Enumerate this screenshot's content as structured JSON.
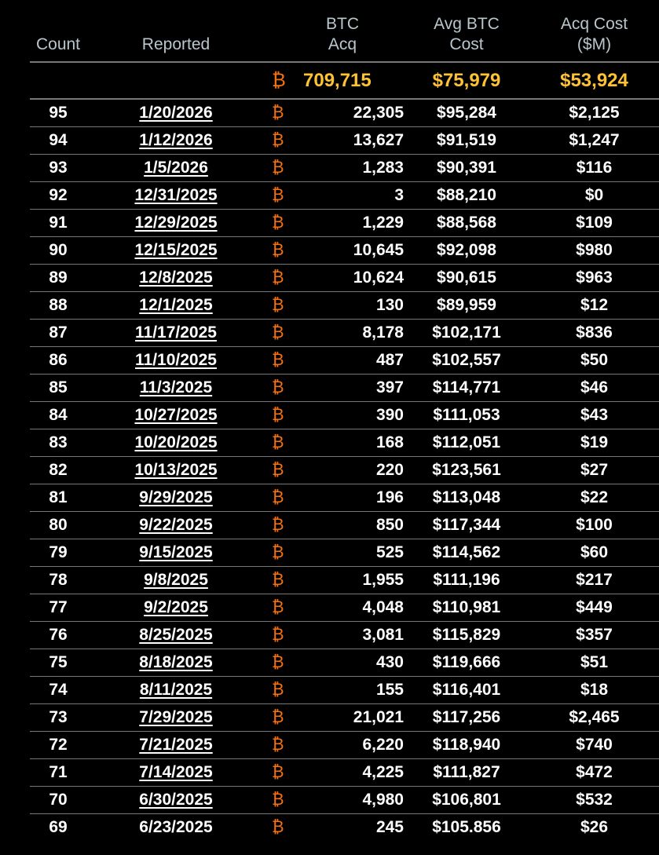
{
  "headers": {
    "count": "Count",
    "reported": "Reported",
    "btc_acq": "BTC Acq",
    "avg_cost": "Avg BTC Cost",
    "acq_cost": "Acq Cost ($M)"
  },
  "totals": {
    "btc_symbol": "₿",
    "btc_acq": "709,715",
    "avg_cost": "$75,979",
    "acq_cost": "$53,924"
  },
  "colors": {
    "btc_symbol": "#f7720f",
    "totals": "#fdc236",
    "header": "#b9c6cc"
  },
  "rows": [
    {
      "count": "95",
      "reported": "1/20/2026",
      "btc": "22,305",
      "avg": "$95,284",
      "cost": "$2,125"
    },
    {
      "count": "94",
      "reported": "1/12/2026",
      "btc": "13,627",
      "avg": "$91,519",
      "cost": "$1,247"
    },
    {
      "count": "93",
      "reported": "1/5/2026",
      "btc": "1,283",
      "avg": "$90,391",
      "cost": "$116"
    },
    {
      "count": "92",
      "reported": "12/31/2025",
      "btc": "3",
      "avg": "$88,210",
      "cost": "$0"
    },
    {
      "count": "91",
      "reported": "12/29/2025",
      "btc": "1,229",
      "avg": "$88,568",
      "cost": "$109"
    },
    {
      "count": "90",
      "reported": "12/15/2025",
      "btc": "10,645",
      "avg": "$92,098",
      "cost": "$980"
    },
    {
      "count": "89",
      "reported": "12/8/2025",
      "btc": "10,624",
      "avg": "$90,615",
      "cost": "$963"
    },
    {
      "count": "88",
      "reported": "12/1/2025",
      "btc": "130",
      "avg": "$89,959",
      "cost": "$12"
    },
    {
      "count": "87",
      "reported": "11/17/2025",
      "btc": "8,178",
      "avg": "$102,171",
      "cost": "$836"
    },
    {
      "count": "86",
      "reported": "11/10/2025",
      "btc": "487",
      "avg": "$102,557",
      "cost": "$50"
    },
    {
      "count": "85",
      "reported": "11/3/2025",
      "btc": "397",
      "avg": "$114,771",
      "cost": "$46"
    },
    {
      "count": "84",
      "reported": "10/27/2025",
      "btc": "390",
      "avg": "$111,053",
      "cost": "$43"
    },
    {
      "count": "83",
      "reported": "10/20/2025",
      "btc": "168",
      "avg": "$112,051",
      "cost": "$19"
    },
    {
      "count": "82",
      "reported": "10/13/2025",
      "btc": "220",
      "avg": "$123,561",
      "cost": "$27"
    },
    {
      "count": "81",
      "reported": "9/29/2025",
      "btc": "196",
      "avg": "$113,048",
      "cost": "$22"
    },
    {
      "count": "80",
      "reported": "9/22/2025",
      "btc": "850",
      "avg": "$117,344",
      "cost": "$100"
    },
    {
      "count": "79",
      "reported": "9/15/2025",
      "btc": "525",
      "avg": "$114,562",
      "cost": "$60"
    },
    {
      "count": "78",
      "reported": "9/8/2025",
      "btc": "1,955",
      "avg": "$111,196",
      "cost": "$217"
    },
    {
      "count": "77",
      "reported": "9/2/2025",
      "btc": "4,048",
      "avg": "$110,981",
      "cost": "$449"
    },
    {
      "count": "76",
      "reported": "8/25/2025",
      "btc": "3,081",
      "avg": "$115,829",
      "cost": "$357"
    },
    {
      "count": "75",
      "reported": "8/18/2025",
      "btc": "430",
      "avg": "$119,666",
      "cost": "$51"
    },
    {
      "count": "74",
      "reported": "8/11/2025",
      "btc": "155",
      "avg": "$116,401",
      "cost": "$18"
    },
    {
      "count": "73",
      "reported": "7/29/2025",
      "btc": "21,021",
      "avg": "$117,256",
      "cost": "$2,465"
    },
    {
      "count": "72",
      "reported": "7/21/2025",
      "btc": "6,220",
      "avg": "$118,940",
      "cost": "$740"
    },
    {
      "count": "71",
      "reported": "7/14/2025",
      "btc": "4,225",
      "avg": "$111,827",
      "cost": "$472"
    },
    {
      "count": "70",
      "reported": "6/30/2025",
      "btc": "4,980",
      "avg": "$106,801",
      "cost": "$532"
    },
    {
      "count": "69",
      "reported": "6/23/2025",
      "btc": "245",
      "avg": "$105.856",
      "cost": "$26"
    }
  ]
}
